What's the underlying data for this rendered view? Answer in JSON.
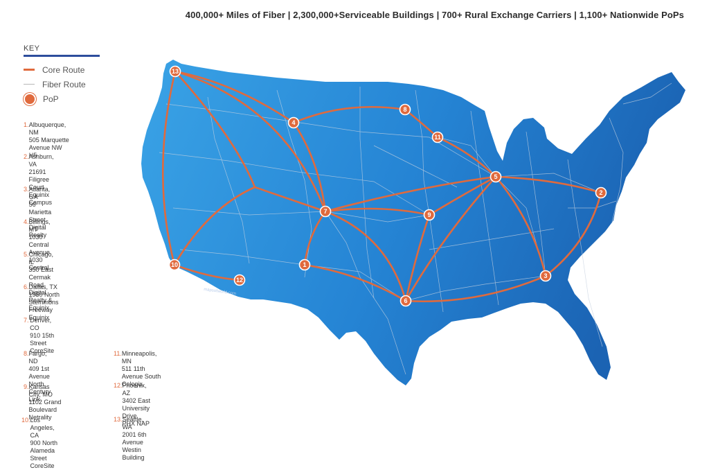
{
  "header": {
    "stats": "400,000+ Miles of Fiber  |  2,300,000+Serviceable Buildings  |  700+ Rural Exchange Carriers  |  1,100+ Nationwide PoPs"
  },
  "key": {
    "title": "KEY",
    "core_route": "Core Route",
    "fiber_route": "Fiber Route",
    "pop": "PoP"
  },
  "colors": {
    "route": "#e06a3d",
    "land_light": "#3aa3e6",
    "land_dark": "#1b63b3",
    "fiber": "#c7d2e0"
  },
  "watermark": "mapsofworld.com",
  "pops": [
    {
      "num": "1.",
      "city": "Albuquerque, NM",
      "line1": "505 Marquette Avenue NW",
      "line2": "H5"
    },
    {
      "num": "2.",
      "city": "Ashburn, VA",
      "line1": "21691 Filigree Court",
      "line2": "Equinix Campus"
    },
    {
      "num": "3.",
      "city": "Atlanta, GA",
      "line1": "56 Marietta Street",
      "line2": "Digital Realty"
    },
    {
      "num": "4.",
      "city": "Billings, MT",
      "line1": "1030 Central Avenue",
      "line2": "1030 Central"
    },
    {
      "num": "5.",
      "city": "Chicago, IL",
      "line1": "350 East Cermak Road",
      "line2": "Digital Realty & Equinix"
    },
    {
      "num": "6.",
      "city": "Dallas, TX",
      "line1": "1950 North Stemmons Freeway",
      "line2": "Equinix"
    },
    {
      "num": "7.",
      "city": "Denver, CO",
      "line1": "910 15th Street",
      "line2": "CoreSite"
    },
    {
      "num": "8.",
      "city": "Fargo, ND",
      "line1": "409 1st Avenue North",
      "line2": "Century Link"
    },
    {
      "num": "9.",
      "city": "Kansas City, MO",
      "line1": "1102 Grand Boulevard",
      "line2": "Netrality"
    },
    {
      "num": "10.",
      "city": "Los Angeles, CA",
      "line1": "900 North Alameda Street",
      "line2": "CoreSite"
    },
    {
      "num": "11.",
      "city": "Minneapolis, MN",
      "line1": "511 11th Avenue South",
      "line2": "Cologix"
    },
    {
      "num": "12.",
      "city": "Phoenix, AZ",
      "line1": "3402 East University Drive",
      "line2": "PHX NAP"
    },
    {
      "num": "13.",
      "city": "Seattle, WA",
      "line1": "2001 6th Avenue",
      "line2": "Westin Building"
    }
  ],
  "pins": [
    "1",
    "2",
    "3",
    "4",
    "5",
    "6",
    "7",
    "8",
    "9",
    "10",
    "11",
    "12",
    "13"
  ]
}
